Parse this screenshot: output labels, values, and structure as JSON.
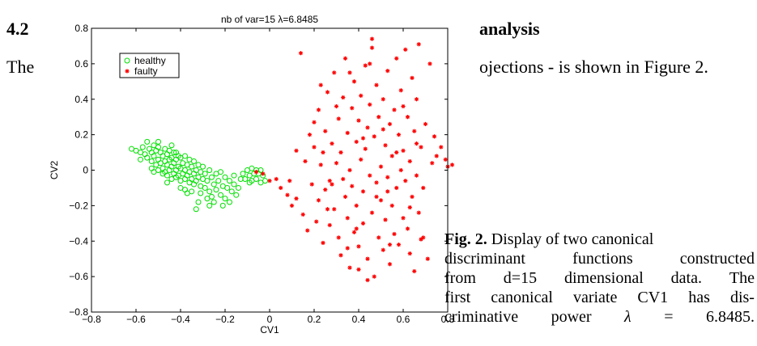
{
  "section": {
    "number": "4.2",
    "title_visible": "analysis"
  },
  "body_text": {
    "start": "The",
    "end": "ojections - is shown in Figure 2."
  },
  "caption": {
    "label": "Fig. 2.",
    "lines": [
      "Display of two canonical",
      [
        "discriminant",
        "functions",
        "constructed"
      ],
      [
        "from",
        "d=15",
        "dimensional",
        "data.",
        "The"
      ],
      [
        "first",
        "canonical",
        "variate",
        "CV1",
        "has",
        "dis-"
      ],
      [
        "criminative",
        "power",
        "λ",
        "=",
        "6.8485."
      ]
    ]
  },
  "chart_data": {
    "type": "scatter",
    "title": "nb of var=15  λ=6.8485",
    "xlabel": "CV1",
    "ylabel": "CV2",
    "xlim": [
      -0.8,
      0.8
    ],
    "ylim": [
      -0.8,
      0.8
    ],
    "xticks": [
      -0.8,
      -0.6,
      -0.4,
      -0.2,
      0,
      0.2,
      0.4,
      0.6,
      0.8
    ],
    "yticks": [
      -0.8,
      -0.6,
      -0.4,
      -0.2,
      0,
      0.2,
      0.4,
      0.6,
      0.8
    ],
    "xtick_labels": [
      "−0.8",
      "−0.6",
      "−0.4",
      "−0.2",
      "0",
      "0.2",
      "0.4",
      "0.6",
      "0.8"
    ],
    "ytick_labels": [
      "−0.8",
      "−0.6",
      "−0.4",
      "−0.2",
      "0",
      "0.2",
      "0.4",
      "0.6",
      "0.8"
    ],
    "grid": false,
    "legend_position": "top-left",
    "series": [
      {
        "name": "healthy",
        "marker": "circle",
        "color": "#00e000",
        "points": [
          [
            -0.62,
            0.12
          ],
          [
            -0.6,
            0.11
          ],
          [
            -0.58,
            0.1
          ],
          [
            -0.57,
            0.13
          ],
          [
            -0.56,
            0.09
          ],
          [
            -0.55,
            0.16
          ],
          [
            -0.55,
            0.07
          ],
          [
            -0.54,
            0.12
          ],
          [
            -0.53,
            0.1
          ],
          [
            -0.53,
            0.05
          ],
          [
            -0.52,
            0.14
          ],
          [
            -0.52,
            0.08
          ],
          [
            -0.51,
            0.11
          ],
          [
            -0.51,
            0.03
          ],
          [
            -0.5,
            0.13
          ],
          [
            -0.5,
            0.06
          ],
          [
            -0.5,
            0.0
          ],
          [
            -0.49,
            0.1
          ],
          [
            -0.49,
            0.04
          ],
          [
            -0.48,
            0.08
          ],
          [
            -0.48,
            0.01
          ],
          [
            -0.48,
            -0.02
          ],
          [
            -0.47,
            0.12
          ],
          [
            -0.47,
            0.05
          ],
          [
            -0.47,
            -0.01
          ],
          [
            -0.46,
            0.09
          ],
          [
            -0.46,
            0.03
          ],
          [
            -0.46,
            -0.03
          ],
          [
            -0.45,
            0.11
          ],
          [
            -0.45,
            0.06
          ],
          [
            -0.45,
            0.0
          ],
          [
            -0.44,
            0.07
          ],
          [
            -0.44,
            0.02
          ],
          [
            -0.44,
            -0.05
          ],
          [
            -0.43,
            0.1
          ],
          [
            -0.43,
            0.04
          ],
          [
            -0.43,
            -0.02
          ],
          [
            -0.42,
            0.06
          ],
          [
            -0.42,
            0.0
          ],
          [
            -0.42,
            -0.04
          ],
          [
            -0.41,
            0.08
          ],
          [
            -0.41,
            0.02
          ],
          [
            -0.41,
            -0.03
          ],
          [
            -0.4,
            0.07
          ],
          [
            -0.4,
            0.01
          ],
          [
            -0.4,
            -0.06
          ],
          [
            -0.39,
            0.04
          ],
          [
            -0.39,
            -0.02
          ],
          [
            -0.38,
            0.08
          ],
          [
            -0.38,
            0.0
          ],
          [
            -0.38,
            -0.05
          ],
          [
            -0.37,
            0.03
          ],
          [
            -0.37,
            -0.03
          ],
          [
            -0.36,
            0.06
          ],
          [
            -0.36,
            -0.01
          ],
          [
            -0.36,
            -0.07
          ],
          [
            -0.35,
            0.02
          ],
          [
            -0.35,
            -0.05
          ],
          [
            -0.34,
            0.05
          ],
          [
            -0.34,
            -0.02
          ],
          [
            -0.34,
            -0.08
          ],
          [
            -0.33,
            0.0
          ],
          [
            -0.33,
            -0.06
          ],
          [
            -0.32,
            0.03
          ],
          [
            -0.32,
            -0.04
          ],
          [
            -0.31,
            -0.01
          ],
          [
            -0.31,
            -0.09
          ],
          [
            -0.3,
            0.02
          ],
          [
            -0.3,
            -0.05
          ],
          [
            -0.29,
            -0.02
          ],
          [
            -0.29,
            -0.1
          ],
          [
            -0.28,
            -0.06
          ],
          [
            -0.27,
            0.0
          ],
          [
            -0.27,
            -0.12
          ],
          [
            -0.26,
            -0.04
          ],
          [
            -0.26,
            -0.15
          ],
          [
            -0.25,
            -0.08
          ],
          [
            -0.24,
            -0.02
          ],
          [
            -0.24,
            -0.11
          ],
          [
            -0.23,
            -0.06
          ],
          [
            -0.22,
            -0.14
          ],
          [
            -0.22,
            -0.01
          ],
          [
            -0.21,
            -0.09
          ],
          [
            -0.2,
            -0.04
          ],
          [
            -0.2,
            -0.16
          ],
          [
            -0.19,
            -0.1
          ],
          [
            -0.18,
            -0.06
          ],
          [
            -0.18,
            -0.18
          ],
          [
            -0.17,
            -0.12
          ],
          [
            -0.16,
            -0.03
          ],
          [
            -0.16,
            -0.08
          ],
          [
            -0.15,
            -0.14
          ],
          [
            -0.14,
            -0.1
          ],
          [
            -0.13,
            -0.05
          ],
          [
            -0.32,
            -0.18
          ],
          [
            -0.35,
            -0.12
          ],
          [
            -0.27,
            -0.2
          ],
          [
            -0.33,
            -0.22
          ],
          [
            -0.28,
            -0.16
          ],
          [
            -0.38,
            -0.11
          ],
          [
            -0.44,
            0.14
          ],
          [
            -0.5,
            0.16
          ],
          [
            -0.58,
            0.06
          ],
          [
            -0.53,
            0.01
          ],
          [
            -0.46,
            -0.07
          ],
          [
            -0.4,
            -0.1
          ],
          [
            -0.37,
            -0.13
          ],
          [
            -0.31,
            -0.13
          ],
          [
            -0.25,
            -0.18
          ],
          [
            -0.21,
            -0.2
          ],
          [
            -0.42,
            0.1
          ],
          [
            -0.52,
            -0.01
          ],
          [
            -0.1,
            0.0
          ],
          [
            -0.09,
            -0.03
          ],
          [
            -0.08,
            0.01
          ],
          [
            -0.08,
            -0.06
          ],
          [
            -0.07,
            -0.02
          ],
          [
            -0.06,
            0.0
          ],
          [
            -0.06,
            -0.05
          ],
          [
            -0.05,
            -0.02
          ],
          [
            -0.04,
            -0.07
          ],
          [
            -0.04,
            0.0
          ],
          [
            -0.03,
            -0.03
          ],
          [
            -0.02,
            -0.06
          ],
          [
            -0.11,
            -0.05
          ],
          [
            -0.12,
            -0.02
          ],
          [
            -0.09,
            -0.07
          ]
        ]
      },
      {
        "name": "faulty",
        "marker": "star",
        "color": "#ff0000",
        "points": [
          [
            -0.06,
            -0.01
          ],
          [
            -0.03,
            -0.02
          ],
          [
            0.0,
            -0.06
          ],
          [
            0.03,
            -0.05
          ],
          [
            0.05,
            -0.1
          ],
          [
            0.08,
            -0.14
          ],
          [
            0.1,
            -0.2
          ],
          [
            0.09,
            -0.06
          ],
          [
            0.12,
            -0.16
          ],
          [
            0.12,
            0.11
          ],
          [
            0.14,
            0.66
          ],
          [
            0.15,
            -0.25
          ],
          [
            0.16,
            0.05
          ],
          [
            0.17,
            -0.34
          ],
          [
            0.18,
            0.2
          ],
          [
            0.19,
            -0.08
          ],
          [
            0.2,
            0.13
          ],
          [
            0.21,
            -0.29
          ],
          [
            0.22,
            0.34
          ],
          [
            0.22,
            -0.17
          ],
          [
            0.23,
            0.03
          ],
          [
            0.24,
            -0.41
          ],
          [
            0.25,
            0.22
          ],
          [
            0.25,
            -0.11
          ],
          [
            0.26,
            0.44
          ],
          [
            0.27,
            -0.06
          ],
          [
            0.27,
            -0.31
          ],
          [
            0.28,
            0.15
          ],
          [
            0.29,
            0.55
          ],
          [
            0.29,
            -0.22
          ],
          [
            0.3,
            0.04
          ],
          [
            0.31,
            -0.38
          ],
          [
            0.31,
            0.29
          ],
          [
            0.32,
            -0.48
          ],
          [
            0.32,
            0.1
          ],
          [
            0.33,
            0.41
          ],
          [
            0.34,
            -0.15
          ],
          [
            0.34,
            0.63
          ],
          [
            0.35,
            -0.27
          ],
          [
            0.35,
            0.21
          ],
          [
            0.36,
            0.0
          ],
          [
            0.36,
            -0.55
          ],
          [
            0.37,
            0.35
          ],
          [
            0.37,
            -0.09
          ],
          [
            0.38,
            0.5
          ],
          [
            0.38,
            -0.35
          ],
          [
            0.39,
            0.16
          ],
          [
            0.39,
            -0.2
          ],
          [
            0.4,
            0.28
          ],
          [
            0.4,
            -0.43
          ],
          [
            0.41,
            0.06
          ],
          [
            0.41,
            0.42
          ],
          [
            0.42,
            -0.12
          ],
          [
            0.42,
            -0.3
          ],
          [
            0.43,
            0.59
          ],
          [
            0.43,
            0.12
          ],
          [
            0.44,
            -0.5
          ],
          [
            0.44,
            0.24
          ],
          [
            0.45,
            -0.03
          ],
          [
            0.45,
            0.37
          ],
          [
            0.46,
            -0.24
          ],
          [
            0.46,
            0.69
          ],
          [
            0.47,
            -0.6
          ],
          [
            0.47,
            0.19
          ],
          [
            0.48,
            -0.07
          ],
          [
            0.48,
            0.48
          ],
          [
            0.49,
            -0.38
          ],
          [
            0.49,
            0.3
          ],
          [
            0.5,
            0.02
          ],
          [
            0.5,
            -0.17
          ],
          [
            0.51,
            0.4
          ],
          [
            0.51,
            -0.45
          ],
          [
            0.52,
            0.14
          ],
          [
            0.52,
            -0.28
          ],
          [
            0.53,
            0.56
          ],
          [
            0.53,
            -0.04
          ],
          [
            0.54,
            0.26
          ],
          [
            0.54,
            -0.53
          ],
          [
            0.55,
            0.08
          ],
          [
            0.55,
            -0.2
          ],
          [
            0.56,
            0.34
          ],
          [
            0.56,
            -0.36
          ],
          [
            0.57,
            0.63
          ],
          [
            0.57,
            -0.1
          ],
          [
            0.58,
            0.2
          ],
          [
            0.58,
            -0.42
          ],
          [
            0.59,
            0.0
          ],
          [
            0.59,
            0.45
          ],
          [
            0.6,
            -0.27
          ],
          [
            0.6,
            0.11
          ],
          [
            0.61,
            -0.06
          ],
          [
            0.61,
            0.68
          ],
          [
            0.62,
            -0.33
          ],
          [
            0.62,
            0.3
          ],
          [
            0.63,
            -0.47
          ],
          [
            0.63,
            0.05
          ],
          [
            0.64,
            -0.15
          ],
          [
            0.64,
            0.52
          ],
          [
            0.65,
            -0.57
          ],
          [
            0.65,
            0.22
          ],
          [
            0.66,
            -0.03
          ],
          [
            0.66,
            0.4
          ],
          [
            0.67,
            -0.24
          ],
          [
            0.67,
            0.71
          ],
          [
            0.68,
            0.13
          ],
          [
            0.68,
            -0.39
          ],
          [
            0.69,
            -0.1
          ],
          [
            0.7,
            0.26
          ],
          [
            0.71,
            -0.5
          ],
          [
            0.72,
            0.6
          ],
          [
            0.73,
            0.04
          ],
          [
            0.74,
            0.19
          ],
          [
            0.75,
            0.08
          ],
          [
            0.77,
            0.13
          ],
          [
            0.79,
            0.06
          ],
          [
            0.8,
            0.02
          ],
          [
            0.82,
            0.03
          ],
          [
            0.2,
            0.27
          ],
          [
            0.23,
            0.48
          ],
          [
            0.26,
            -0.22
          ],
          [
            0.3,
            0.36
          ],
          [
            0.33,
            -0.05
          ],
          [
            0.36,
            0.55
          ],
          [
            0.39,
            -0.33
          ],
          [
            0.42,
            0.18
          ],
          [
            0.45,
            0.6
          ],
          [
            0.48,
            -0.15
          ],
          [
            0.51,
            0.23
          ],
          [
            0.54,
            -0.42
          ],
          [
            0.57,
            0.1
          ],
          [
            0.6,
            0.36
          ],
          [
            0.63,
            -0.21
          ],
          [
            0.66,
            0.15
          ],
          [
            0.69,
            -0.38
          ],
          [
            0.44,
            -0.62
          ],
          [
            0.46,
            0.74
          ],
          [
            0.53,
            -0.12
          ],
          [
            0.4,
            -0.56
          ],
          [
            0.35,
            -0.44
          ],
          [
            0.28,
            -0.08
          ],
          [
            0.24,
            0.1
          ]
        ]
      }
    ]
  }
}
